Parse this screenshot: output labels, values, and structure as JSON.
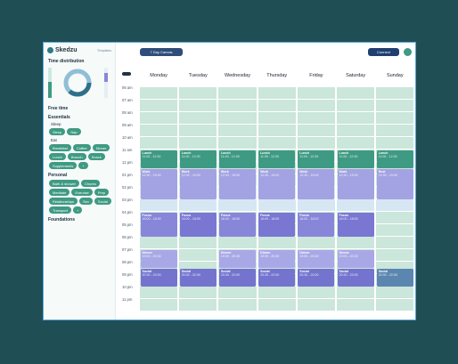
{
  "app": {
    "name": "Skedzu",
    "templates": "Templates"
  },
  "sidebar": {
    "title": "Time distribution",
    "sections": [
      {
        "name": "Free time",
        "groups": []
      },
      {
        "name": "Essentials",
        "groups": [
          {
            "name": "Sleep",
            "chips": [
              "Sleep",
              "Nap"
            ]
          },
          {
            "name": "Eat",
            "chips": [
              "Breakfast",
              "Coffee",
              "Dinner",
              "Lunch",
              "Brunch",
              "Snack",
              "Supplements",
              "+"
            ]
          }
        ]
      },
      {
        "name": "Personal",
        "groups": [
          {
            "name": "",
            "chips": [
              "Bath & shower",
              "Chores",
              "Meditate",
              "Exercise",
              "Prep",
              "Relationships",
              "Sex",
              "Social",
              "Transport",
              "+"
            ]
          }
        ]
      },
      {
        "name": "Foundations",
        "groups": []
      }
    ]
  },
  "toolbar": {
    "view": "7 Day Canvas",
    "connect": "Connect"
  },
  "calendar": {
    "times": [
      "06 am",
      "07 am",
      "08 am",
      "09 am",
      "10 am",
      "11 am",
      "12 pm",
      "01 pm",
      "02 pm",
      "03 pm",
      "04 pm",
      "05 pm",
      "06 pm",
      "07 pm",
      "08 pm",
      "09 pm",
      "10 pm",
      "11 pm"
    ],
    "days": [
      {
        "name": "Monday",
        "events": [
          {
            "title": "Lunch",
            "time": "11:00 - 12:30",
            "color": "#3f9a83"
          },
          {
            "title": "Work",
            "time": "12:30 - 15:00",
            "color": "#a3a2e2"
          },
          {
            "title": "Focus",
            "time": "16:00 - 18:00",
            "color": "#8886d9"
          },
          {
            "title": "Dinner",
            "time": "19:00 - 20:30",
            "color": "#a9a8e6"
          },
          {
            "title": "Social",
            "time": "20:30 - 22:00",
            "color": "#7474cf"
          }
        ]
      },
      {
        "name": "Tuesday",
        "events": [
          {
            "title": "Lunch",
            "time": "11:00 - 12:30",
            "color": "#3f9a83"
          },
          {
            "title": "Work",
            "time": "12:30 - 15:00",
            "color": "#a3a2e2"
          },
          {
            "title": "Focus",
            "time": "16:00 - 18:00",
            "color": "#7a77d3"
          },
          {
            "title": "Social",
            "time": "20:30 - 22:00",
            "color": "#7474cf"
          }
        ]
      },
      {
        "name": "Wednesday",
        "events": [
          {
            "title": "Lunch",
            "time": "11:00 - 12:30",
            "color": "#3f9a83"
          },
          {
            "title": "Work",
            "time": "12:30 - 15:00",
            "color": "#a3a2e2"
          },
          {
            "title": "Focus",
            "time": "16:00 - 18:00",
            "color": "#8886d9"
          },
          {
            "title": "Dinner",
            "time": "19:00 - 20:30",
            "color": "#a9a8e6"
          },
          {
            "title": "Social",
            "time": "20:30 - 22:00",
            "color": "#7474cf"
          }
        ]
      },
      {
        "name": "Thursday",
        "events": [
          {
            "title": "Lunch",
            "time": "11:00 - 12:30",
            "color": "#3f9a83"
          },
          {
            "title": "Work",
            "time": "12:30 - 15:00",
            "color": "#a3a2e2"
          },
          {
            "title": "Focus",
            "time": "16:00 - 18:00",
            "color": "#7a77d3"
          },
          {
            "title": "Dinner",
            "time": "19:00 - 20:30",
            "color": "#a9a8e6"
          },
          {
            "title": "Social",
            "time": "20:30 - 22:00",
            "color": "#7474cf"
          }
        ]
      },
      {
        "name": "Friday",
        "events": [
          {
            "title": "Lunch",
            "time": "11:00 - 12:30",
            "color": "#3f9a83"
          },
          {
            "title": "Work",
            "time": "12:30 - 15:00",
            "color": "#a3a2e2"
          },
          {
            "title": "Focus",
            "time": "16:00 - 18:00",
            "color": "#8886d9"
          },
          {
            "title": "Dinner",
            "time": "19:00 - 20:30",
            "color": "#a9a8e6"
          },
          {
            "title": "Social",
            "time": "20:30 - 22:00",
            "color": "#7474cf"
          }
        ]
      },
      {
        "name": "Saturday",
        "events": [
          {
            "title": "Lunch",
            "time": "11:00 - 12:30",
            "color": "#3f9a83"
          },
          {
            "title": "Work",
            "time": "12:30 - 15:00",
            "color": "#a3a2e2"
          },
          {
            "title": "Focus",
            "time": "16:00 - 18:00",
            "color": "#7a77d3"
          },
          {
            "title": "Dinner",
            "time": "19:00 - 20:30",
            "color": "#a9a8e6"
          },
          {
            "title": "Social",
            "time": "20:30 - 22:00",
            "color": "#7474cf"
          }
        ]
      },
      {
        "name": "Sunday",
        "events": [
          {
            "title": "Lunch",
            "time": "11:00 - 12:30",
            "color": "#3f9a83"
          },
          {
            "title": "Rest",
            "time": "12:30 - 15:00",
            "color": "#a3a2e2"
          },
          {
            "title": "Social",
            "time": "20:30 - 22:00",
            "color": "#5b86b0"
          }
        ]
      }
    ]
  }
}
